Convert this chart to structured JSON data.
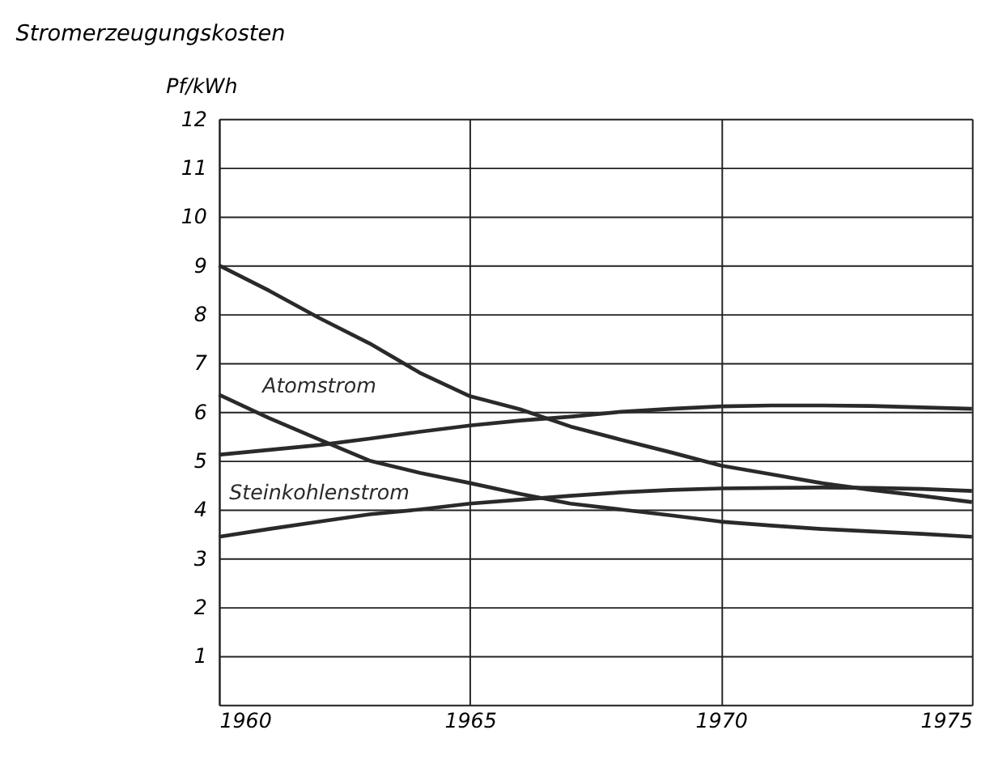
{
  "chart_data": {
    "type": "line",
    "title": "Stromerzeugungskosten",
    "ylabel": "Pf/kWh",
    "x": [
      1960,
      1961,
      1962,
      1963,
      1964,
      1965,
      1966,
      1967,
      1968,
      1969,
      1970,
      1971,
      1972,
      1973,
      1974,
      1975
    ],
    "series": [
      {
        "color": "#2a2a2a",
        "values": [
          9.0,
          8.48,
          7.92,
          7.4,
          6.8,
          6.32,
          6.05,
          5.7,
          5.43,
          5.17,
          4.9,
          4.72,
          4.54,
          4.4,
          4.28,
          4.15
        ]
      },
      {
        "name": "Atomstrom",
        "color": "#2a2a2a",
        "values": [
          6.35,
          5.87,
          5.43,
          5.0,
          4.75,
          4.54,
          4.32,
          4.12,
          4.0,
          3.88,
          3.75,
          3.67,
          3.6,
          3.55,
          3.5,
          3.44
        ]
      },
      {
        "color": "#2a2a2a",
        "values": [
          5.12,
          5.22,
          5.32,
          5.45,
          5.59,
          5.72,
          5.82,
          5.9,
          6.0,
          6.06,
          6.11,
          6.13,
          6.13,
          6.12,
          6.09,
          6.06
        ]
      },
      {
        "name": "Steinkohlenstrom",
        "color": "#2a2a2a",
        "values": [
          3.44,
          3.6,
          3.75,
          3.9,
          4.0,
          4.12,
          4.2,
          4.28,
          4.35,
          4.4,
          4.43,
          4.44,
          4.45,
          4.44,
          4.42,
          4.38
        ]
      }
    ],
    "xlim": [
      1960,
      1975
    ],
    "xticks": [
      1960,
      1965,
      1970,
      1975
    ],
    "ylim": [
      0,
      12
    ],
    "yticks": [
      1,
      2,
      3,
      4,
      5,
      6,
      7,
      8,
      9,
      10,
      11,
      12
    ],
    "grid": true,
    "legend": false,
    "marker": "none",
    "line_style": "solid"
  }
}
